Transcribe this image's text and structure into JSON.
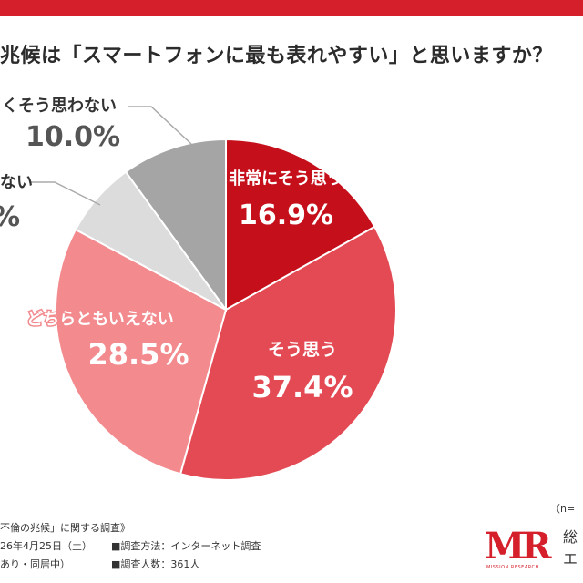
{
  "header": {
    "title": "兆候は「スマートフォンに最も表れやすい」と思いますか？"
  },
  "chart_data": {
    "type": "pie",
    "slices": [
      {
        "label": "非常にそう思う",
        "value": 16.9,
        "value_label": "16.9%",
        "color": "#c5101c"
      },
      {
        "label": "そう思う",
        "value": 37.4,
        "value_label": "37.4%",
        "color": "#e34a54"
      },
      {
        "label": "どちらともいえない",
        "value": 28.5,
        "value_label": "28.5%",
        "color": "#f28a8e"
      },
      {
        "label": "ない",
        "value": 7.2,
        "value_label": "%",
        "color": "#dcdcdc"
      },
      {
        "label": "くそう思わない",
        "value": 10.0,
        "value_label": "10.0%",
        "color": "#a5a5a5"
      }
    ]
  },
  "footer": {
    "survey_title": "不倫の兆候」に関する調査》",
    "survey_date": "26年4月25日（土）",
    "survey_condition": "あり・同居中）",
    "method": "■調査方法：インターネット調査",
    "respondents": "■調査人数：361人",
    "sample_note": "（n=",
    "logo_text": "MR",
    "logo_sub": "MISSION RESEARCH",
    "brand_line1": "総",
    "brand_line2": "エ"
  }
}
